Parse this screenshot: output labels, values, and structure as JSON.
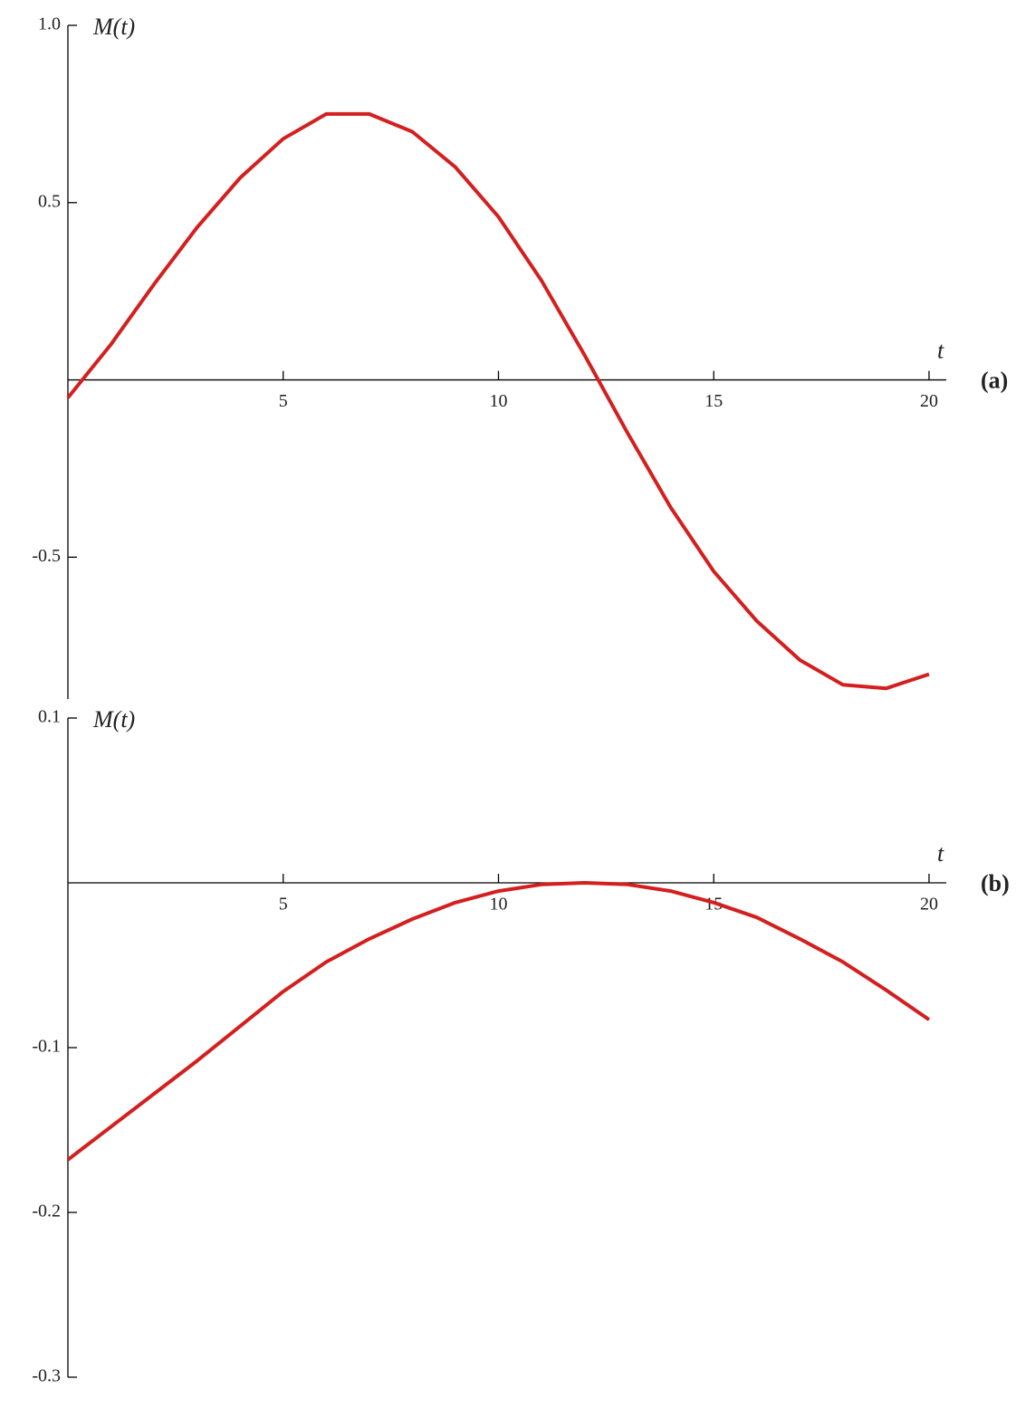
{
  "chart_data": [
    {
      "type": "line",
      "panel_label": "(a)",
      "x_label": "t",
      "y_label": "M(t)",
      "color": "#d41f1f",
      "x": [
        0,
        1,
        2,
        3,
        4,
        5,
        6,
        7,
        8,
        9,
        10,
        11,
        12,
        13,
        14,
        15,
        16,
        17,
        18,
        19,
        20
      ],
      "values": [
        -0.05,
        0.1,
        0.27,
        0.43,
        0.57,
        0.68,
        0.75,
        0.75,
        0.7,
        0.6,
        0.46,
        0.28,
        0.07,
        -0.15,
        -0.36,
        -0.54,
        -0.68,
        -0.79,
        -0.86,
        -0.87,
        -0.83
      ],
      "xlim": [
        0,
        20.4
      ],
      "ylim": [
        -0.9,
        1.0
      ],
      "xticks": [
        5,
        10,
        15,
        20
      ],
      "yticks": [
        {
          "value": 1,
          "label": "1.0"
        },
        0.5,
        -0.5
      ]
    },
    {
      "type": "line",
      "panel_label": "(b)",
      "x_label": "t",
      "y_label": "M(t)",
      "color": "#d41f1f",
      "x": [
        0,
        1,
        2,
        3,
        4,
        5,
        6,
        7,
        8,
        9,
        10,
        11,
        12,
        13,
        14,
        15,
        16,
        17,
        18,
        19,
        20
      ],
      "values": [
        -0.168,
        -0.148,
        -0.128,
        -0.108,
        -0.087,
        -0.066,
        -0.048,
        -0.034,
        -0.022,
        -0.012,
        -0.005,
        -0.001,
        0,
        -0.001,
        -0.005,
        -0.012,
        -0.021,
        -0.034,
        -0.048,
        -0.065,
        -0.083
      ],
      "xlim": [
        0,
        20.4
      ],
      "ylim": [
        -0.3,
        0.1
      ],
      "xticks": [
        5,
        10,
        15,
        20
      ],
      "yticks": [
        0.1,
        -0.1,
        -0.2,
        -0.3
      ]
    }
  ]
}
